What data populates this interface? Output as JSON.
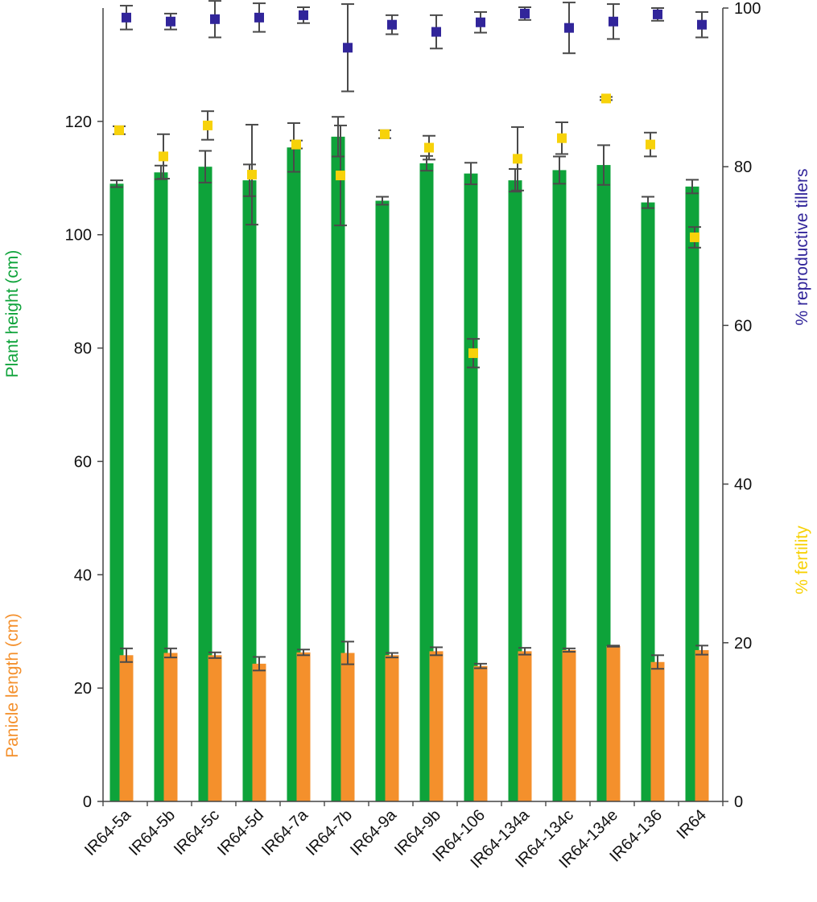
{
  "chart_data": {
    "type": "bar",
    "categories": [
      "IR64-5a",
      "IR64-5b",
      "IR64-5c",
      "IR64-5d",
      "IR64-7a",
      "IR64-7b",
      "IR64-9a",
      "IR64-9b",
      "IR64-106",
      "IR64-134a",
      "IR64-134c",
      "IR64-134e",
      "IR64-136",
      "IR64"
    ],
    "left_axis": {
      "ylim": [
        0,
        140
      ],
      "ticks": [
        0,
        20,
        40,
        60,
        80,
        100,
        120
      ],
      "labels": [
        {
          "text": "Plant height (cm)",
          "color": "#0ea33a"
        },
        {
          "text": "Panicle length (cm)",
          "color": "#f4902c"
        }
      ]
    },
    "right_axis": {
      "ylim": [
        0,
        100
      ],
      "ticks": [
        0,
        20,
        40,
        60,
        80,
        100
      ],
      "labels": [
        {
          "text": "% reproductive tillers",
          "color": "#31259a"
        },
        {
          "text": "% fertility",
          "color": "#f7d20a"
        }
      ]
    },
    "series": [
      {
        "name": "Plant height (cm)",
        "kind": "bar",
        "axis": "left",
        "color": "#0ea33a",
        "values": [
          109,
          111,
          112,
          109.6,
          115.4,
          117.3,
          106,
          112.6,
          110.8,
          109.6,
          111.4,
          112.3,
          105.7,
          108.5
        ],
        "errors": [
          0.6,
          1.2,
          2.8,
          2.8,
          4.3,
          3.5,
          0.7,
          1.3,
          1.9,
          2,
          2.4,
          3.5,
          1,
          1.2
        ]
      },
      {
        "name": "Panicle length (cm)",
        "kind": "bar",
        "axis": "left",
        "color": "#f4902c",
        "values": [
          25.8,
          26.2,
          25.8,
          24.3,
          26.3,
          26.2,
          25.8,
          26.5,
          23.9,
          26.5,
          26.7,
          27.4,
          24.6,
          26.7
        ],
        "errors": [
          1.2,
          0.8,
          0.5,
          1.2,
          0.5,
          2,
          0.4,
          0.7,
          0.4,
          0.6,
          0.3,
          0.1,
          1.2,
          0.8
        ]
      },
      {
        "name": "% reproductive tillers",
        "kind": "scatter",
        "axis": "right",
        "color": "#31259a",
        "values": [
          98.8,
          98.3,
          98.6,
          98.8,
          99.1,
          95,
          97.9,
          97,
          98.2,
          99.3,
          97.5,
          98.3,
          99.2,
          97.9
        ],
        "errors": [
          1.5,
          1,
          2.3,
          1.8,
          1,
          5.5,
          1.2,
          2.1,
          1.3,
          0.8,
          3.2,
          2.2,
          0.8,
          1.6
        ]
      },
      {
        "name": "% fertility",
        "kind": "scatter",
        "axis": "right",
        "color": "#f7d20a",
        "values": [
          84.6,
          81.3,
          85.2,
          79,
          82.8,
          78.9,
          84.1,
          82.4,
          56.5,
          81,
          83.6,
          88.6,
          82.8,
          71.1
        ],
        "errors": [
          0.5,
          2.8,
          1.8,
          6.3,
          0.5,
          6.3,
          0.5,
          1.5,
          1.8,
          4,
          2,
          0.2,
          1.5,
          1.3
        ]
      }
    ]
  }
}
